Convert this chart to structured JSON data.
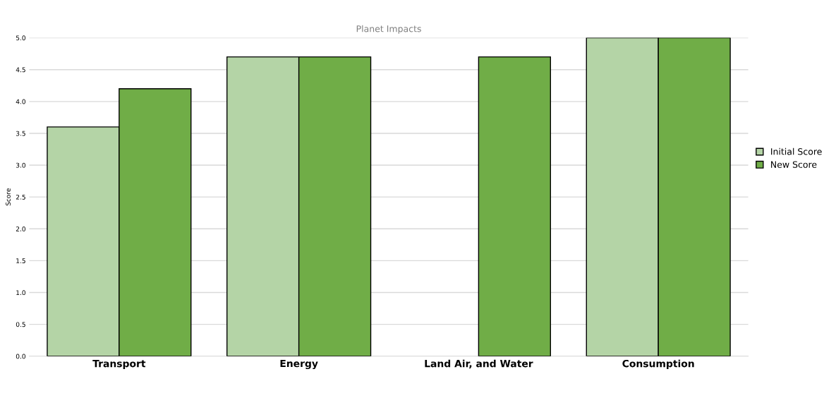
{
  "chart_data": {
    "type": "bar",
    "title": "Planet Impacts",
    "ylabel": "Score",
    "categories": [
      "Transport",
      "Energy",
      "Land Air, and Water",
      "Consumption"
    ],
    "series": [
      {
        "name": "Initial Score",
        "color": "#b4d4a6",
        "values": [
          3.6,
          4.7,
          null,
          5.0
        ]
      },
      {
        "name": "New Score",
        "color": "#70ad47",
        "values": [
          4.2,
          4.7,
          4.7,
          5.0
        ]
      }
    ],
    "ylim": [
      0,
      5
    ],
    "yticks": [
      {
        "value": 0,
        "label": "0.0"
      },
      0.5,
      {
        "value": 1,
        "label": "1.0"
      },
      1.5,
      {
        "value": 2,
        "label": "2.0"
      },
      2.5,
      {
        "value": 3,
        "label": "3.0"
      },
      3.5,
      {
        "value": 4,
        "label": "4.0"
      },
      4.5,
      {
        "value": 5,
        "label": "5.0"
      }
    ],
    "grid": "y",
    "legend": "right"
  }
}
